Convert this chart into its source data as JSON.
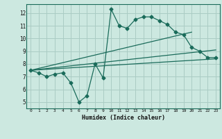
{
  "xlabel": "Humidex (Indice chaleur)",
  "background_color": "#cce8e0",
  "grid_color": "#aaccC4",
  "line_color": "#1a6b5a",
  "xlim": [
    -0.5,
    23.5
  ],
  "ylim": [
    4.5,
    12.7
  ],
  "xticks": [
    0,
    1,
    2,
    3,
    4,
    5,
    6,
    7,
    8,
    9,
    10,
    11,
    12,
    13,
    14,
    15,
    16,
    17,
    18,
    19,
    20,
    21,
    22,
    23
  ],
  "yticks": [
    5,
    6,
    7,
    8,
    9,
    10,
    11,
    12
  ],
  "series1_x": [
    0,
    1,
    2,
    3,
    4,
    5,
    6,
    7,
    8,
    9,
    10,
    11,
    12,
    13,
    14,
    15,
    16,
    17,
    18,
    19,
    20,
    21,
    22,
    23
  ],
  "series1_y": [
    7.5,
    7.3,
    7.0,
    7.2,
    7.3,
    6.5,
    5.0,
    5.5,
    8.0,
    6.9,
    12.3,
    11.0,
    10.8,
    11.5,
    11.7,
    11.7,
    11.4,
    11.1,
    10.5,
    10.3,
    9.3,
    9.0,
    8.5,
    8.5
  ],
  "series2_x": [
    0,
    23
  ],
  "series2_y": [
    7.5,
    8.4
  ],
  "series3_x": [
    0,
    20
  ],
  "series3_y": [
    7.5,
    10.5
  ],
  "series4_x": [
    0,
    23
  ],
  "series4_y": [
    7.5,
    9.1
  ]
}
